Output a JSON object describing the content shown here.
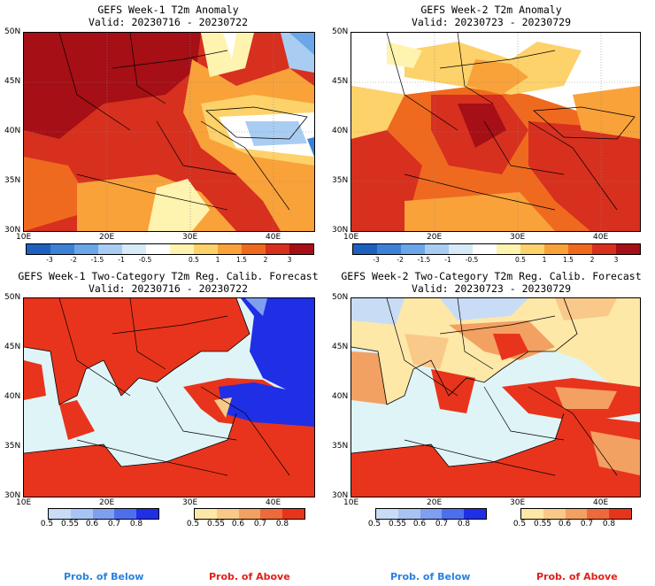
{
  "panels": [
    {
      "title": "GEFS Week-1 T2m Anomaly",
      "valid": "Valid: 20230716 - 20230722"
    },
    {
      "title": "GEFS Week-2 T2m Anomaly",
      "valid": "Valid: 20230723 - 20230729"
    },
    {
      "title": "GEFS Week-1 Two-Category T2m Reg. Calib. Forecast",
      "valid": "Valid: 20230716 - 20230722"
    },
    {
      "title": "GEFS Week-2 Two-Category T2m Reg. Calib. Forecast",
      "valid": "Valid: 20230723 - 20230729"
    }
  ],
  "axes": {
    "lat_labels": [
      "50N",
      "45N",
      "40N",
      "35N",
      "30N"
    ],
    "lon_labels": [
      "10E",
      "20E",
      "30E",
      "40E"
    ]
  },
  "anomaly_colorbar": {
    "ticks": [
      "-3",
      "-2",
      "-1.5",
      "-1",
      "-0.5",
      "0.5",
      "1",
      "1.5",
      "2",
      "3"
    ],
    "colors": [
      "#1f5fbf",
      "#3b82d6",
      "#6aa6e8",
      "#a9cdf2",
      "#d6eaf8",
      "#ffffff",
      "#fff3b0",
      "#fdd26a",
      "#f9a23a",
      "#ef6a1f",
      "#d7301f",
      "#a50f15"
    ]
  },
  "prob_colorbars": {
    "below": {
      "ticks": [
        "0.5",
        "0.55",
        "0.6",
        "0.7",
        "0.8"
      ],
      "colors": [
        "#c9dcf5",
        "#a8c4f2",
        "#7f9ff0",
        "#4d6fee",
        "#1f2fe6"
      ]
    },
    "above": {
      "ticks": [
        "0.5",
        "0.55",
        "0.6",
        "0.7",
        "0.8"
      ],
      "colors": [
        "#fde8a8",
        "#f9c98a",
        "#f3a063",
        "#ee6a3a",
        "#e8341c"
      ]
    }
  },
  "legend": {
    "below": "Prob. of Below",
    "above": "Prob. of Above",
    "below_color": "#2a80e0",
    "above_color": "#e0201a"
  },
  "map_colors": {
    "water": "#dff4f7",
    "land_line": "#000000"
  }
}
